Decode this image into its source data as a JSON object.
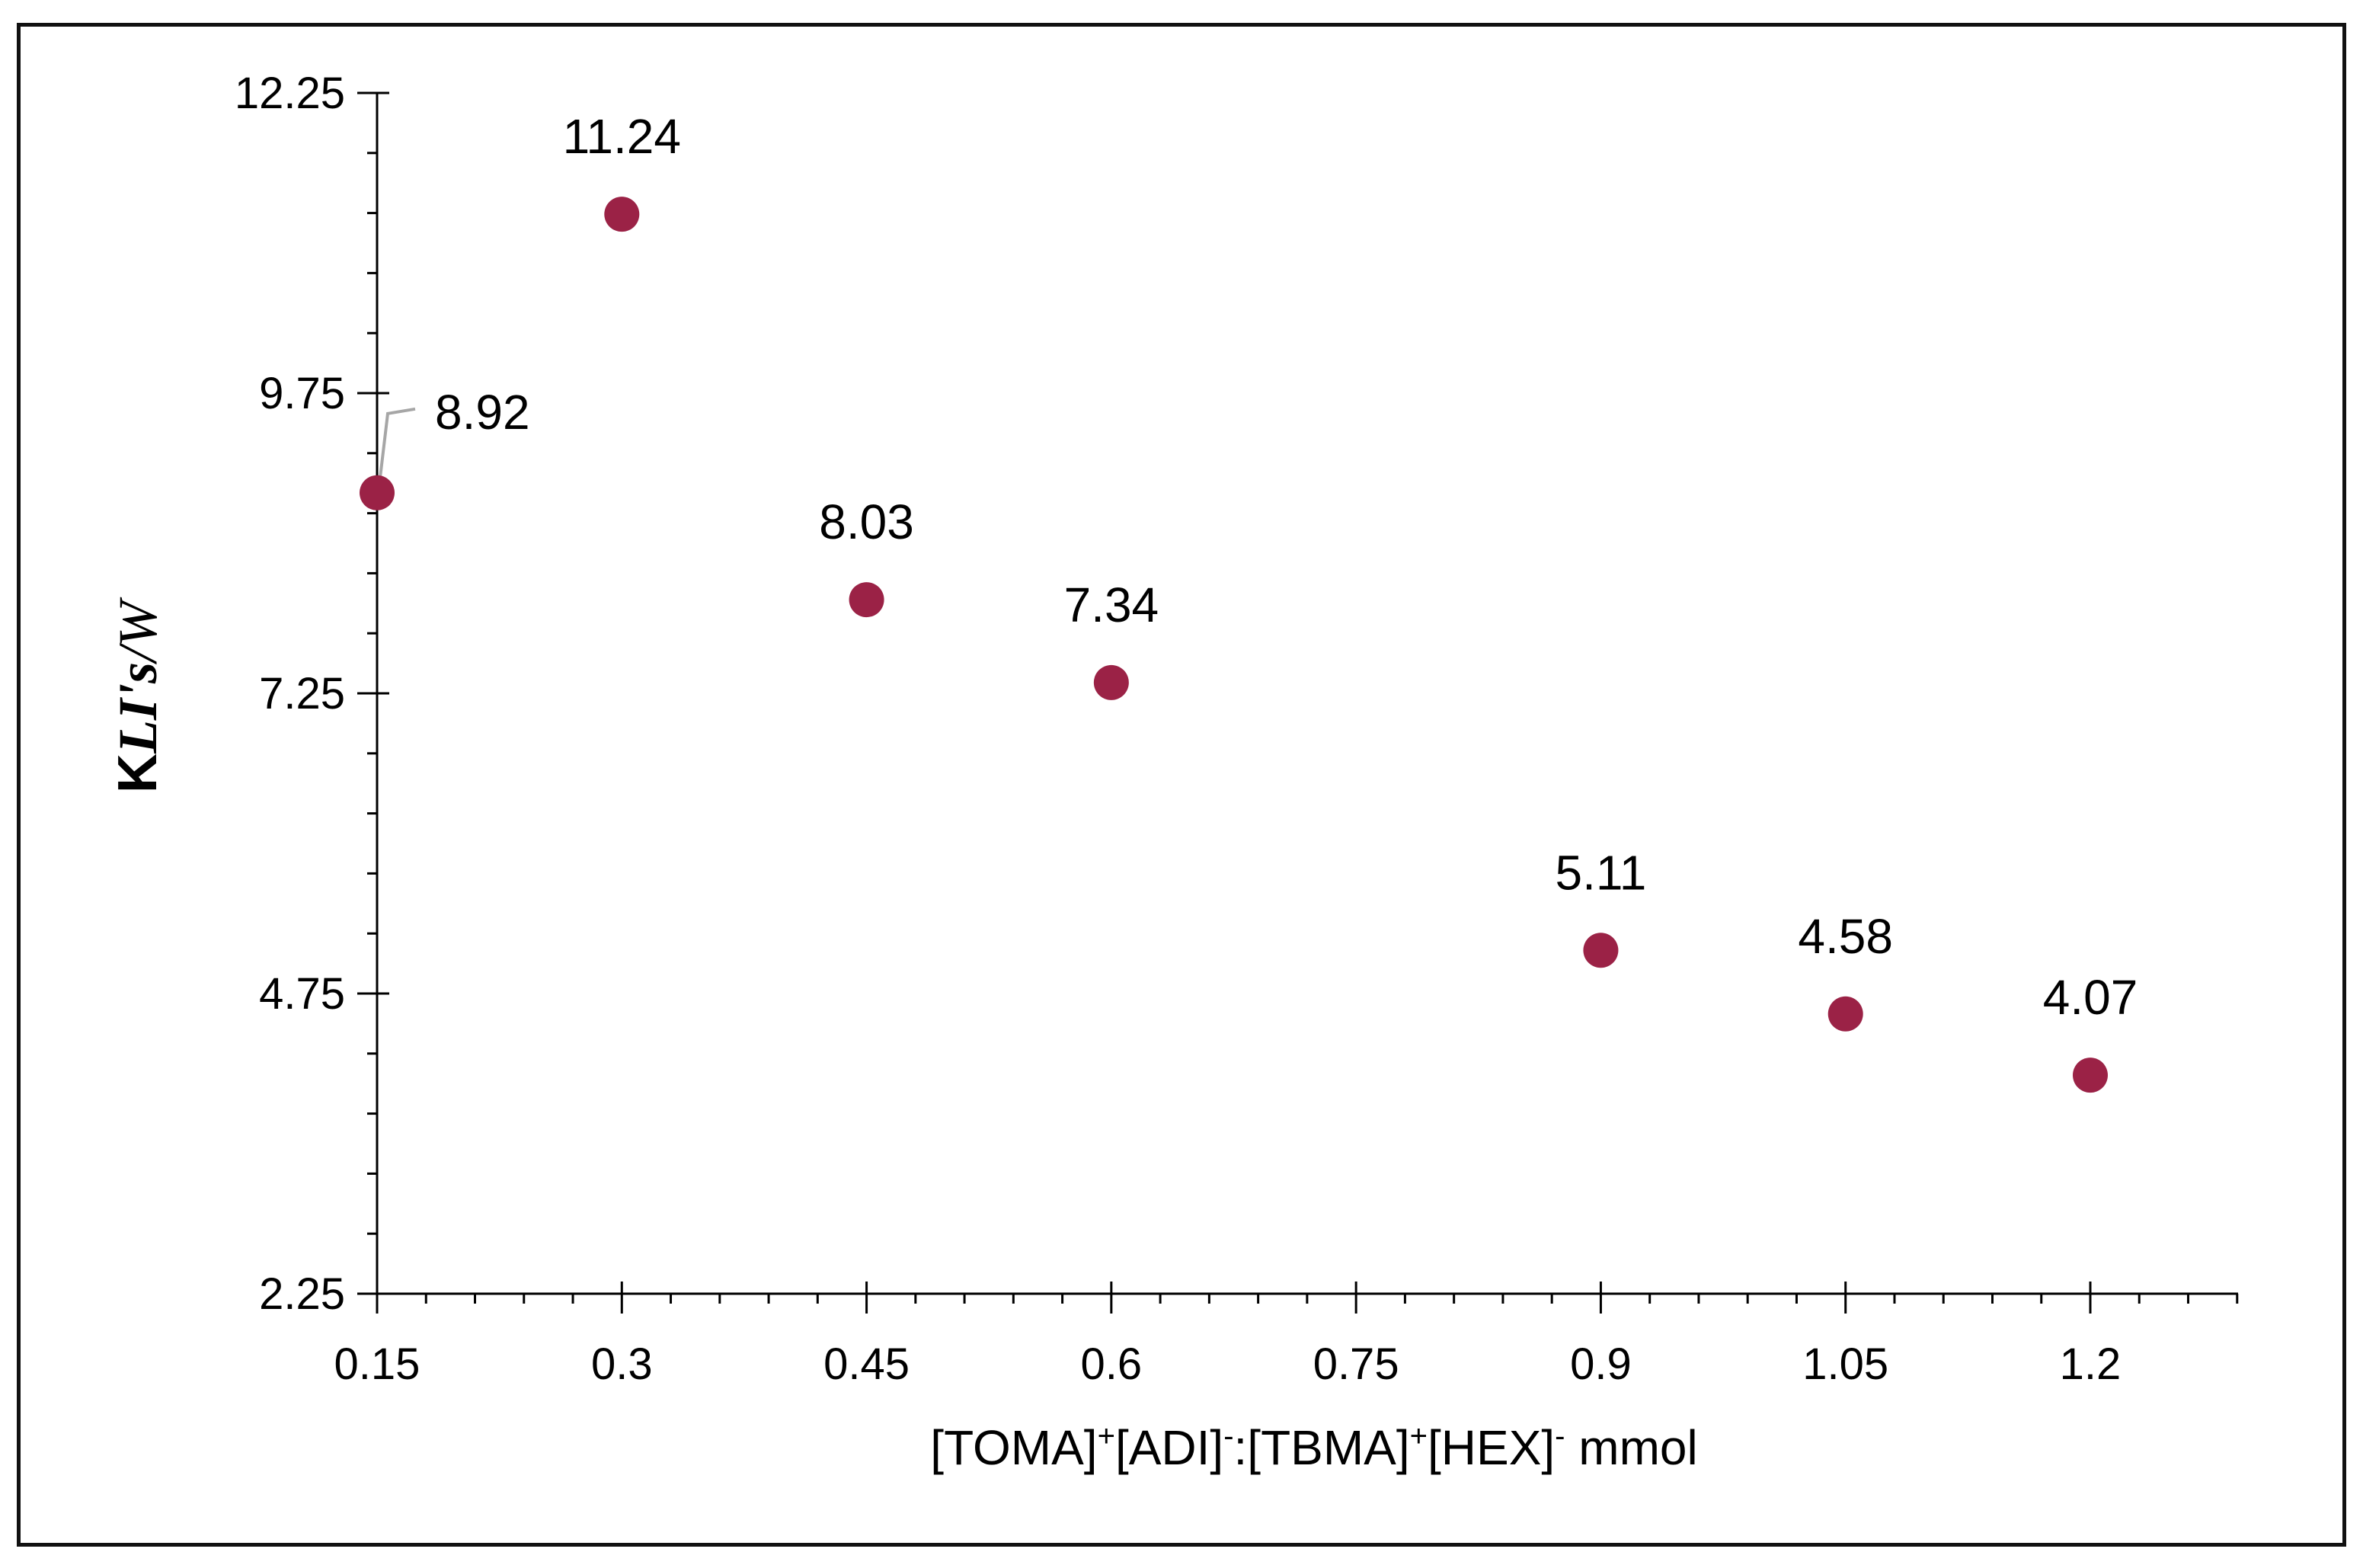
{
  "chart_data": {
    "type": "scatter",
    "title": "",
    "xlabel": {
      "parts": [
        "[TOMA]",
        "+",
        "[ADI]",
        "-",
        ":[TBMA]",
        "+",
        "[HEX]",
        "-",
        " mmol"
      ],
      "text": "[TOMA]+[ADI]-:[TBMA]+[HEX]- mmol"
    },
    "ylabel": {
      "prefix": "K",
      "italic": "LI's",
      "suffix": "/W",
      "text": "KLI's/W"
    },
    "x_ticks": [
      "0.15",
      "0.3",
      "0.45",
      "0.6",
      "0.75",
      "0.9",
      "1.05",
      "1.2"
    ],
    "y_ticks": [
      "2.25",
      "4.75",
      "7.25",
      "9.75",
      "12.25"
    ],
    "xlim": [
      0.15,
      1.3
    ],
    "ylim": [
      2.25,
      12.25
    ],
    "series": [
      {
        "name": "KLI's/W",
        "color": "#9b2246",
        "points": [
          {
            "x": 0.15,
            "y": 8.92,
            "label": "8.92"
          },
          {
            "x": 0.3,
            "y": 11.24,
            "label": "11.24"
          },
          {
            "x": 0.45,
            "y": 8.03,
            "label": "8.03"
          },
          {
            "x": 0.6,
            "y": 7.34,
            "label": "7.34"
          },
          {
            "x": 0.9,
            "y": 5.11,
            "label": "5.11"
          },
          {
            "x": 1.05,
            "y": 4.58,
            "label": "4.58"
          },
          {
            "x": 1.2,
            "y": 4.07,
            "label": "4.07"
          }
        ]
      }
    ]
  }
}
